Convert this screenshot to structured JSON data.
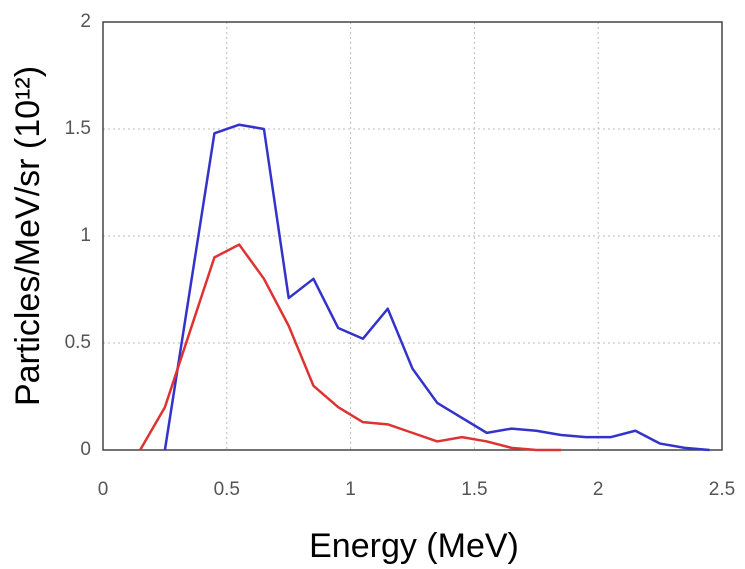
{
  "chart_data": {
    "type": "line",
    "xlabel": "Energy (MeV)",
    "ylabel": "Particles/MeV/sr (10¹²)",
    "xlim": [
      0,
      2.5
    ],
    "xticks": [
      0,
      0.5,
      1,
      1.5,
      2,
      2.5
    ],
    "ylim": [
      0,
      2
    ],
    "yticks": [
      0,
      0.5,
      1,
      1.5,
      2
    ],
    "grid": true,
    "series": [
      {
        "color": "#3333cc",
        "x": [
          0.25,
          0.45,
          0.55,
          0.65,
          0.75,
          0.85,
          0.95,
          1.05,
          1.15,
          1.25,
          1.35,
          1.45,
          1.55,
          1.65,
          1.75,
          1.85,
          1.95,
          2.05,
          2.15,
          2.25,
          2.35,
          2.45
        ],
        "values": [
          0,
          1.48,
          1.52,
          1.5,
          0.71,
          0.8,
          0.57,
          0.52,
          0.66,
          0.38,
          0.22,
          0.15,
          0.08,
          0.1,
          0.09,
          0.07,
          0.06,
          0.06,
          0.09,
          0.03,
          0.01,
          0
        ]
      },
      {
        "color": "#dd3333",
        "x": [
          0.15,
          0.25,
          0.35,
          0.45,
          0.55,
          0.65,
          0.75,
          0.85,
          0.95,
          1.05,
          1.15,
          1.25,
          1.35,
          1.45,
          1.55,
          1.65,
          1.75,
          1.85
        ],
        "values": [
          0,
          0.2,
          0.55,
          0.9,
          0.96,
          0.8,
          0.58,
          0.3,
          0.2,
          0.13,
          0.12,
          0.08,
          0.04,
          0.06,
          0.04,
          0.01,
          0,
          0
        ]
      }
    ]
  }
}
